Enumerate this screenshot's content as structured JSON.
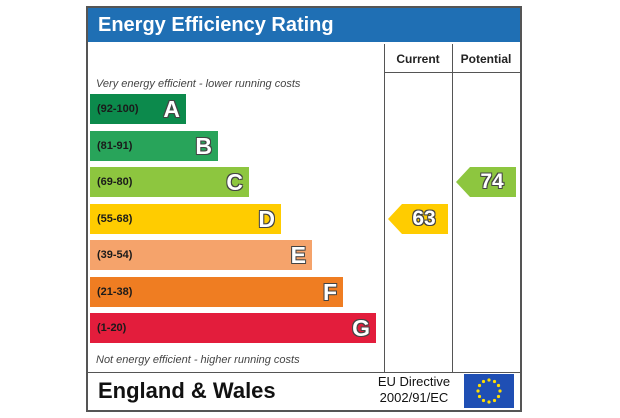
{
  "title": "Energy Efficiency Rating",
  "columns": {
    "current": "Current",
    "potential": "Potential"
  },
  "top_note": "Very energy efficient - lower running costs",
  "bottom_note": "Not energy efficient - higher running costs",
  "footer": {
    "country": "England & Wales",
    "directive_line1": "EU Directive",
    "directive_line2": "2002/91/EC",
    "flag_icon": "eu-flag-icon"
  },
  "chart_data": {
    "type": "bar",
    "categories": [
      "A",
      "B",
      "C",
      "D",
      "E",
      "F",
      "G"
    ],
    "ranges": [
      "(92-100)",
      "(81-91)",
      "(69-80)",
      "(55-68)",
      "(39-54)",
      "(21-38)",
      "(1-20)"
    ],
    "band_min": [
      92,
      81,
      69,
      55,
      39,
      21,
      1
    ],
    "band_max": [
      100,
      91,
      80,
      68,
      54,
      38,
      20
    ],
    "colors": [
      "#0c8a4c",
      "#28a45a",
      "#8dc63f",
      "#ffcc00",
      "#f5a36b",
      "#ef7d22",
      "#e31d3c"
    ],
    "current": 63,
    "potential": 74
  }
}
